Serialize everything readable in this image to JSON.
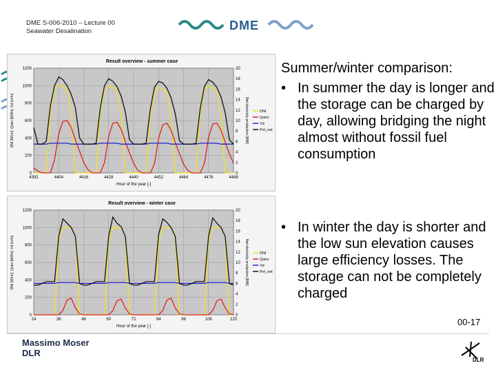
{
  "header": {
    "line1": "DME S-006-2010 – Lecture 00",
    "line2": "Seawater Desalination"
  },
  "logo": {
    "text": "DME"
  },
  "slide": {
    "title": "Summer/winter comparison:",
    "bullet1": "In summer the day is longer and the storage can be charged by day, allowing bridging the night almost without fossil fuel consumption",
    "bullet2": "In winter the day is shorter and the low sun elevation causes large efficiency losses. The storage can not be completely charged",
    "bullet_char": "•",
    "number": "00-17"
  },
  "footer": {
    "name": "Massimo Moser",
    "org": "DLR"
  },
  "colors": {
    "dni": "#f2e21a",
    "qstor": "#e0201a",
    "vd": "#2020d0",
    "pel": "#111111",
    "plot_bg": "#c8c8c8"
  },
  "chart_data": [
    {
      "type": "line",
      "title": "Result overview - summer case",
      "xlabel": "Hour of the year [-]",
      "ylabel": "DNI [W/m²]; Qstor [MWh]; Vd [m³/h]",
      "y2label": "Net electricity production [MW]",
      "x_ticks": [
        "4392",
        "4404",
        "4416",
        "4428",
        "4440",
        "4452",
        "4464",
        "4476",
        "4488"
      ],
      "xlim": [
        4392,
        4488
      ],
      "ylim": [
        0,
        1200
      ],
      "y_ticks": [
        0,
        200,
        400,
        600,
        800,
        1000,
        1200
      ],
      "y2lim": [
        0,
        20
      ],
      "y2_ticks": [
        0,
        2,
        4,
        6,
        8,
        10,
        12,
        14,
        16,
        18,
        20
      ],
      "legend": [
        "DNI",
        "Qstor",
        "Vd",
        "Pel_net"
      ],
      "legend_position": "right",
      "series": [
        {
          "name": "DNI",
          "values": [
            0,
            0,
            0,
            0,
            700,
            960,
            1010,
            990,
            960,
            700,
            0,
            0,
            0,
            0,
            0,
            0,
            700,
            950,
            1000,
            980,
            940,
            680,
            0,
            0,
            0,
            0,
            0,
            0,
            650,
            920,
            980,
            960,
            920,
            650,
            0,
            0,
            0,
            0,
            0,
            0,
            680,
            950,
            1000,
            970,
            930,
            660,
            0,
            0,
            0
          ]
        },
        {
          "name": "Qstor",
          "values": [
            60,
            20,
            0,
            0,
            0,
            150,
            450,
            590,
            600,
            520,
            380,
            250,
            120,
            40,
            0,
            0,
            0,
            120,
            420,
            570,
            580,
            500,
            360,
            230,
            110,
            30,
            0,
            0,
            0,
            100,
            400,
            550,
            570,
            490,
            350,
            220,
            100,
            30,
            0,
            0,
            0,
            110,
            410,
            560,
            570,
            490,
            350,
            220,
            110
          ]
        },
        {
          "name": "Vd",
          "values": [
            330,
            330,
            330,
            330,
            340,
            340,
            340,
            340,
            340,
            330,
            330,
            330,
            330,
            330,
            330,
            330,
            340,
            340,
            340,
            340,
            340,
            330,
            330,
            330,
            330,
            330,
            330,
            330,
            340,
            340,
            340,
            340,
            340,
            330,
            330,
            330,
            330,
            330,
            330,
            330,
            340,
            340,
            340,
            340,
            340,
            330,
            330,
            330,
            330
          ]
        },
        {
          "name": "Pel_net",
          "values": [
            520,
            330,
            330,
            360,
            770,
            1000,
            1100,
            1070,
            1000,
            900,
            750,
            400,
            330,
            330,
            330,
            340,
            750,
            1000,
            1080,
            1050,
            990,
            880,
            700,
            380,
            330,
            330,
            330,
            340,
            730,
            980,
            1050,
            1030,
            970,
            860,
            680,
            370,
            330,
            330,
            330,
            340,
            740,
            990,
            1070,
            1040,
            980,
            870,
            690,
            380,
            330
          ]
        }
      ]
    },
    {
      "type": "line",
      "title": "Result overview - winter case",
      "xlabel": "Hour of the year [-]",
      "ylabel": "DNI [W/m²]; Qstor [MWh]; Vd [m³/h]",
      "y2label": "Net electricity production [MW]",
      "x_ticks": [
        "24",
        "36",
        "48",
        "60",
        "72",
        "84",
        "96",
        "108",
        "120"
      ],
      "xlim": [
        24,
        120
      ],
      "ylim": [
        0,
        1200
      ],
      "y_ticks": [
        0,
        200,
        400,
        600,
        800,
        1000,
        1200
      ],
      "y2lim": [
        0,
        20
      ],
      "y2_ticks": [
        0,
        2,
        4,
        6,
        8,
        10,
        12,
        14,
        16,
        18,
        20
      ],
      "legend": [
        "DNI",
        "Qstor",
        "Vd",
        "Pel_net"
      ],
      "legend_position": "right",
      "series": [
        {
          "name": "DNI",
          "values": [
            0,
            0,
            0,
            0,
            0,
            0,
            850,
            1000,
            1000,
            1000,
            900,
            0,
            0,
            0,
            0,
            0,
            0,
            0,
            850,
            1000,
            1000,
            1000,
            900,
            0,
            0,
            0,
            0,
            0,
            0,
            0,
            850,
            1000,
            1000,
            1000,
            900,
            0,
            0,
            0,
            0,
            0,
            0,
            0,
            850,
            1000,
            1000,
            1000,
            900,
            0,
            0
          ]
        },
        {
          "name": "Qstor",
          "values": [
            0,
            0,
            0,
            0,
            0,
            0,
            0,
            50,
            170,
            190,
            80,
            10,
            0,
            0,
            0,
            0,
            0,
            0,
            0,
            50,
            160,
            180,
            80,
            10,
            0,
            0,
            0,
            0,
            0,
            0,
            0,
            50,
            170,
            190,
            80,
            10,
            0,
            0,
            0,
            0,
            0,
            0,
            0,
            50,
            160,
            180,
            80,
            10,
            0
          ]
        },
        {
          "name": "Vd",
          "values": [
            360,
            360,
            360,
            360,
            360,
            360,
            370,
            370,
            370,
            370,
            370,
            360,
            360,
            360,
            360,
            360,
            360,
            360,
            370,
            370,
            370,
            370,
            370,
            360,
            360,
            360,
            360,
            360,
            360,
            360,
            370,
            370,
            370,
            370,
            370,
            360,
            360,
            360,
            360,
            360,
            360,
            360,
            370,
            370,
            370,
            370,
            370,
            360,
            360
          ]
        },
        {
          "name": "Pel_net",
          "values": [
            340,
            340,
            360,
            380,
            380,
            380,
            900,
            1100,
            1050,
            1000,
            900,
            360,
            340,
            340,
            360,
            380,
            380,
            380,
            900,
            1120,
            1050,
            1010,
            900,
            360,
            340,
            340,
            360,
            380,
            380,
            380,
            920,
            1100,
            1060,
            1000,
            900,
            360,
            340,
            340,
            360,
            380,
            380,
            380,
            900,
            1110,
            1050,
            1000,
            900,
            360,
            340
          ]
        }
      ]
    }
  ]
}
